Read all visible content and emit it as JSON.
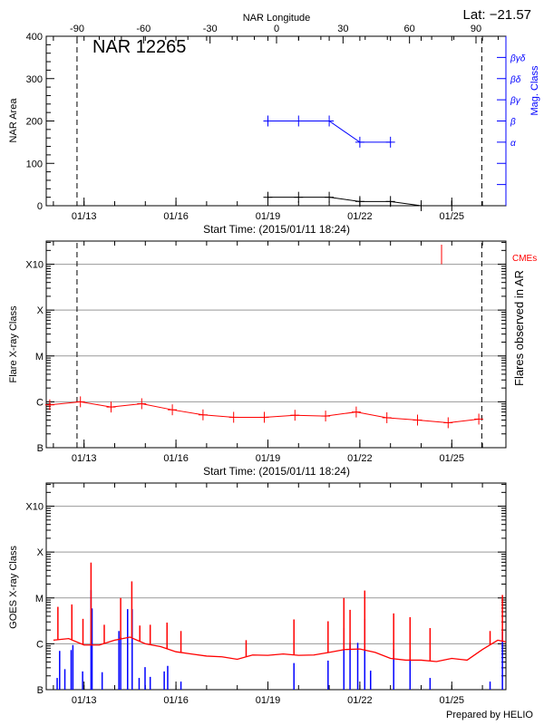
{
  "header": {
    "latitude": "Lat: −21.57",
    "region_title": "NAR 12265"
  },
  "footer": {
    "credit": "Prepared by HELIO"
  },
  "colors": {
    "area": "#000000",
    "mag_class": "#0000ff",
    "flares": "#ff0000",
    "cme": "#ff0000",
    "goes_long": "#ff0000",
    "goes_short": "#0000ff",
    "grid": "#999999"
  },
  "chart_data": [
    {
      "type": "line",
      "title": "NAR 12265",
      "xlabel": "Start Time: (2015/01/11 18:24)",
      "ylabel": "NAR Area",
      "y2label": "Mag. Class",
      "top_axis_label": "NAR Longitude",
      "top_axis_ticks": [
        -90,
        -60,
        -30,
        0,
        30,
        60,
        90
      ],
      "xlim": [
        "2015-01-11 18:24",
        "2015-01-26 18:24"
      ],
      "x_tick_labels": [
        "01/13",
        "01/16",
        "01/19",
        "01/22",
        "01/25"
      ],
      "ylim": [
        0,
        400
      ],
      "y_ticks": [
        0,
        100,
        200,
        300,
        400
      ],
      "y2_ticks": [
        {
          "value": 50,
          "label": ""
        },
        {
          "value": 100,
          "label": ""
        },
        {
          "value": 150,
          "label": "α"
        },
        {
          "value": 200,
          "label": "β"
        },
        {
          "value": 250,
          "label": "βγ"
        },
        {
          "value": 300,
          "label": "βδ"
        },
        {
          "value": 350,
          "label": "βγδ"
        }
      ],
      "limb_crossings": [
        "2015-01-12 18:30",
        "2015-01-25 23:30"
      ],
      "series": [
        {
          "key": "area",
          "x": [
            "2015-01-19 00:00",
            "2015-01-20 00:00",
            "2015-01-21 00:00",
            "2015-01-22 00:00",
            "2015-01-23 00:00",
            "2015-01-24 00:00",
            "2015-01-25 00:00"
          ],
          "values": [
            20,
            20,
            20,
            10,
            10,
            0,
            0
          ]
        },
        {
          "key": "mag_class",
          "x": [
            "2015-01-19 00:00",
            "2015-01-20 00:00",
            "2015-01-21 00:00",
            "2015-01-22 00:00",
            "2015-01-23 00:00"
          ],
          "values": [
            "β",
            "β",
            "β",
            "α",
            "α"
          ]
        }
      ],
      "grid": false
    },
    {
      "type": "line",
      "xlabel": "Start Time: (2015/01/11 18:24)",
      "ylabel": "Flare X-ray Class",
      "y2label": "Flares observed in AR",
      "cme_label": "CMEs",
      "xlim": [
        "2015-01-11 18:24",
        "2015-01-26 18:24"
      ],
      "x_tick_labels": [
        "01/13",
        "01/16",
        "01/19",
        "01/22",
        "01/25"
      ],
      "y_scale": "log",
      "ylim": [
        1e-07,
        0.0032
      ],
      "y_ticks": [
        {
          "value": 1e-07,
          "label": "B"
        },
        {
          "value": 1e-06,
          "label": "C"
        },
        {
          "value": 1e-05,
          "label": "M"
        },
        {
          "value": 0.0001,
          "label": "X"
        },
        {
          "value": 0.001,
          "label": "X10"
        }
      ],
      "limb_crossings": [
        "2015-01-12 18:30",
        "2015-01-25 23:30"
      ],
      "series": [
        {
          "key": "flares",
          "x": [
            "2015-01-11 21:10",
            "2015-01-12 21:10",
            "2015-01-13 21:10",
            "2015-01-14 21:10",
            "2015-01-15 21:10",
            "2015-01-16 21:10",
            "2015-01-17 21:10",
            "2015-01-18 21:10",
            "2015-01-19 21:10",
            "2015-01-20 21:10",
            "2015-01-21 21:10",
            "2015-01-22 21:10",
            "2015-01-23 21:10",
            "2015-01-24 21:10",
            "2015-01-25 21:10"
          ],
          "values": [
            8.6e-07,
            1e-06,
            7.7e-07,
            9.1e-07,
            6.7e-07,
            5.2e-07,
            4.6e-07,
            4.6e-07,
            5.1e-07,
            4.9e-07,
            6e-07,
            4.5e-07,
            4e-07,
            3.5e-07,
            4.2e-07
          ]
        }
      ],
      "cmes": [
        "2015-01-24 16:00"
      ],
      "grid": true
    },
    {
      "type": "line",
      "ylabel": "GOES X-ray Class",
      "xlim": [
        "2015-01-11 18:24",
        "2015-01-26 18:24"
      ],
      "x_tick_labels": [
        "01/13",
        "01/16",
        "01/19",
        "01/22",
        "01/25"
      ],
      "y_scale": "log",
      "ylim": [
        1e-07,
        0.0032
      ],
      "y_ticks": [
        {
          "value": 1e-07,
          "label": "B"
        },
        {
          "value": 1e-06,
          "label": "C"
        },
        {
          "value": 1e-05,
          "label": "M"
        },
        {
          "value": 0.0001,
          "label": "X"
        },
        {
          "value": 0.001,
          "label": "X10"
        }
      ],
      "series": [
        {
          "key": "goes_long_background",
          "x": [
            "2015-01-12 00:00",
            "2015-01-12 12:00",
            "2015-01-13 00:00",
            "2015-01-13 12:00",
            "2015-01-14 00:00",
            "2015-01-14 12:00",
            "2015-01-15 00:00",
            "2015-01-15 12:00",
            "2015-01-16 00:00",
            "2015-01-16 12:00",
            "2015-01-17 00:00",
            "2015-01-17 12:00",
            "2015-01-18 00:00",
            "2015-01-18 12:00",
            "2015-01-19 00:00",
            "2015-01-19 12:00",
            "2015-01-20 00:00",
            "2015-01-20 12:00",
            "2015-01-21 00:00",
            "2015-01-21 12:00",
            "2015-01-22 00:00",
            "2015-01-22 12:00",
            "2015-01-23 00:00",
            "2015-01-23 12:00",
            "2015-01-24 00:00",
            "2015-01-24 12:00",
            "2015-01-25 00:00",
            "2015-01-25 12:00",
            "2015-01-26 00:00",
            "2015-01-26 12:00",
            "2015-01-26 18:24"
          ],
          "values": [
            1.2e-06,
            1.3e-06,
            9.4e-07,
            9.4e-07,
            1.2e-06,
            1.4e-06,
            1e-06,
            8.7e-07,
            6.7e-07,
            6e-07,
            5.4e-07,
            5.2e-07,
            4.6e-07,
            5.7e-07,
            5.6e-07,
            6e-07,
            5.6e-07,
            5.7e-07,
            6.5e-07,
            7.5e-07,
            7.7e-07,
            6.5e-07,
            4.8e-07,
            4.4e-07,
            4.4e-07,
            4.1e-07,
            4.8e-07,
            4.4e-07,
            7.5e-07,
            1.2e-06,
            1.1e-06
          ]
        },
        {
          "key": "goes_long_peaks",
          "x": [
            "2015-01-12 03:32",
            "2015-01-12 14:27",
            "2015-01-12 23:10",
            "2015-01-13 05:28",
            "2015-01-13 15:50",
            "2015-01-14 04:41",
            "2015-01-14 13:25",
            "2015-01-14 19:41",
            "2015-01-15 03:50",
            "2015-01-15 17:00",
            "2015-01-16 03:54",
            "2015-01-18 06:57",
            "2015-01-19 20:24",
            "2015-01-20 23:06",
            "2015-01-21 11:30",
            "2015-01-21 16:20",
            "2015-01-22 03:50",
            "2015-01-23 02:30",
            "2015-01-23 15:20",
            "2015-01-24 07:00",
            "2015-01-26 06:00",
            "2015-01-26 15:40"
          ],
          "values": [
            6.4e-06,
            7.2e-06,
            3.5e-06,
            5.9e-05,
            2.6e-06,
            1e-05,
            2.3e-05,
            2.5e-06,
            2.6e-06,
            2.9e-06,
            1.9e-06,
            1.2e-06,
            3.4e-06,
            3.1e-06,
            1e-05,
            5.5e-06,
            1.45e-05,
            4.6e-06,
            3.8e-06,
            2.2e-06,
            1.9e-06,
            1.16e-05
          ]
        },
        {
          "key": "goes_short_peaks",
          "x": [
            "2015-01-12 02:58",
            "2015-01-12 04:54",
            "2015-01-12 08:59",
            "2015-01-12 13:54",
            "2015-01-12 15:16",
            "2015-01-12 22:54",
            "2015-01-13 05:28",
            "2015-01-13 06:17",
            "2015-01-13 14:12",
            "2015-01-14 03:19",
            "2015-01-14 04:41",
            "2015-01-14 10:08",
            "2015-01-14 13:41",
            "2015-01-14 19:09",
            "2015-01-14 23:47",
            "2015-01-15 03:50",
            "2015-01-15 14:48",
            "2015-01-15 17:31",
            "2015-01-16 03:54",
            "2015-01-19 20:24",
            "2015-01-20 23:06",
            "2015-01-21 11:30",
            "2015-01-21 16:20",
            "2015-01-21 22:20",
            "2015-01-22 03:50",
            "2015-01-22 08:26",
            "2015-01-23 02:30",
            "2015-01-23 15:20",
            "2015-01-24 07:00",
            "2015-01-26 06:00",
            "2015-01-26 15:40"
          ],
          "values": [
            1.8e-07,
            7e-07,
            2.8e-07,
            7.3e-07,
            9.4e-07,
            2.5e-07,
            1.48e-05,
            5.9e-06,
            2.4e-07,
            1.9e-06,
            1.4e-06,
            5.7e-06,
            5.7e-06,
            1.8e-07,
            3.1e-07,
            1.9e-07,
            2.5e-07,
            3.3e-07,
            1.5e-07,
            3.8e-07,
            4.3e-07,
            2.2e-06,
            1.05e-06,
            1.05e-06,
            3.5e-06,
            2.6e-07,
            7.7e-07,
            4.8e-07,
            1.8e-07,
            1.5e-07,
            1.85e-06
          ]
        }
      ],
      "grid": true
    }
  ]
}
